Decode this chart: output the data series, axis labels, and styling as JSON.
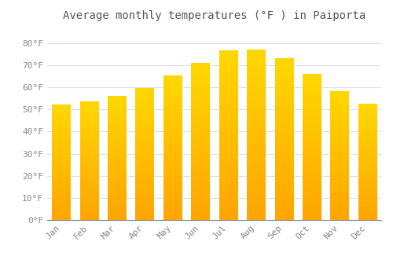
{
  "title": "Average monthly temperatures (°F ) in Paiporta",
  "months": [
    "Jan",
    "Feb",
    "Mar",
    "Apr",
    "May",
    "Jun",
    "Jul",
    "Aug",
    "Sep",
    "Oct",
    "Nov",
    "Dec"
  ],
  "values": [
    52,
    53.5,
    56,
    59.5,
    65,
    71,
    76.5,
    77,
    73,
    66,
    58,
    52.5
  ],
  "bar_color": "#FFA500",
  "bar_color_top": "#FFD966",
  "background_color": "#FFFFFF",
  "grid_color": "#DDDDEE",
  "text_color": "#888888",
  "title_color": "#555555",
  "ylim": [
    0,
    87
  ],
  "yticks": [
    0,
    10,
    20,
    30,
    40,
    50,
    60,
    70,
    80
  ],
  "ytick_labels": [
    "0°F",
    "10°F",
    "20°F",
    "30°F",
    "40°F",
    "50°F",
    "60°F",
    "70°F",
    "80°F"
  ],
  "title_fontsize": 10,
  "tick_fontsize": 8,
  "bar_width": 0.65
}
